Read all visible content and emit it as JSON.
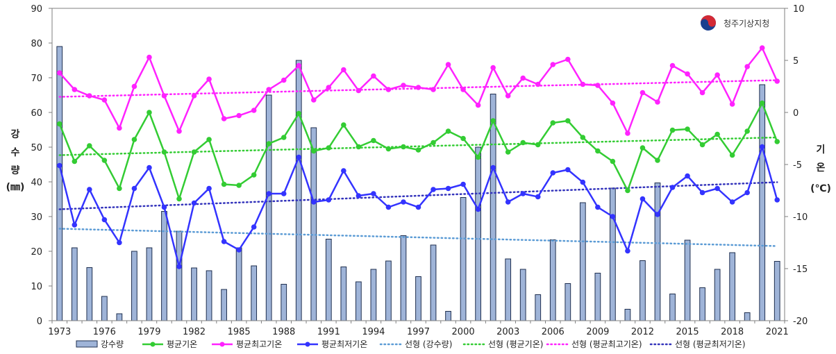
{
  "logo": {
    "text": "청주기상지청"
  },
  "chart_data": {
    "type": "bar+line",
    "years": [
      1973,
      1974,
      1975,
      1976,
      1977,
      1978,
      1979,
      1980,
      1981,
      1982,
      1983,
      1984,
      1985,
      1986,
      1987,
      1988,
      1989,
      1990,
      1991,
      1992,
      1993,
      1994,
      1995,
      1996,
      1997,
      1998,
      1999,
      2000,
      2001,
      2002,
      2003,
      2004,
      2005,
      2006,
      2007,
      2008,
      2009,
      2010,
      2011,
      2012,
      2013,
      2014,
      2015,
      2016,
      2017,
      2018,
      2019,
      2020,
      2021
    ],
    "x_tick_labels": [
      "1973",
      "1976",
      "1979",
      "1982",
      "1985",
      "1988",
      "1991",
      "1994",
      "1997",
      "2000",
      "2003",
      "2006",
      "2009",
      "2012",
      "2015",
      "2018",
      "2021"
    ],
    "left_axis": {
      "label_chars": [
        "강",
        "수",
        "량"
      ],
      "unit": "(㎜)",
      "min": 0,
      "max": 90,
      "ticks": [
        0,
        10,
        20,
        30,
        40,
        50,
        60,
        70,
        80,
        90
      ]
    },
    "right_axis": {
      "label_chars": [
        "기",
        "온"
      ],
      "unit": "(℃)",
      "min": -20,
      "max": 10,
      "ticks": [
        -20,
        -15,
        -10,
        -5,
        0,
        5,
        10
      ]
    },
    "grid": false,
    "series": [
      {
        "name": "강수량",
        "type": "bar",
        "axis": "left",
        "color": "#9fb4d8",
        "values": [
          79,
          21,
          15.3,
          7,
          2,
          20,
          21,
          31.5,
          25.8,
          15.2,
          14.4,
          9,
          21,
          15.8,
          65,
          10.5,
          75,
          55.6,
          23.5,
          15.5,
          11.2,
          14.8,
          17.2,
          24.5,
          12.7,
          21.8,
          2.7,
          35.5,
          50,
          65.3,
          17.8,
          14.8,
          7.5,
          23.3,
          10.7,
          34,
          13.7,
          38.2,
          3.3,
          17.3,
          39.7,
          7.7,
          23.2,
          9.5,
          14.8,
          19.6,
          2.3,
          68,
          17.1
        ]
      },
      {
        "name": "평균기온",
        "type": "line",
        "axis": "right",
        "color": "#33cc33",
        "values": [
          -1.1,
          -4.7,
          -3.2,
          -4.6,
          -7.3,
          -2.6,
          0,
          -3.8,
          -8.3,
          -3.8,
          -2.6,
          -6.9,
          -7,
          -6,
          -3,
          -2.4,
          -0.1,
          -3.7,
          -3.4,
          -1.2,
          -3.3,
          -2.7,
          -3.5,
          -3.3,
          -3.6,
          -2.9,
          -1.8,
          -2.5,
          -4.3,
          -0.8,
          -3.8,
          -2.9,
          -3.1,
          -1,
          -0.8,
          -2.4,
          -3.7,
          -4.7,
          -7.5,
          -3.4,
          -4.6,
          -1.7,
          -1.6,
          -3.1,
          -2.1,
          -4.1,
          -1.8,
          0.9,
          -2.8
        ]
      },
      {
        "name": "평균최고기온",
        "type": "line",
        "axis": "right",
        "color": "#ff22ff",
        "values": [
          3.8,
          2.2,
          1.6,
          1.2,
          -1.5,
          2.5,
          5.3,
          1.6,
          -1.8,
          1.6,
          3.2,
          -0.6,
          -0.3,
          0.2,
          2.2,
          3.1,
          4.5,
          1.2,
          2.4,
          4.1,
          2.1,
          3.5,
          2.2,
          2.6,
          2.4,
          2.2,
          4.6,
          2.2,
          0.7,
          4.3,
          1.6,
          3.3,
          2.7,
          4.6,
          5.1,
          2.7,
          2.6,
          0.9,
          -2,
          1.9,
          1,
          4.5,
          3.7,
          1.9,
          3.6,
          0.8,
          4.4,
          6.2,
          3
        ]
      },
      {
        "name": "평균최저기온",
        "type": "line",
        "axis": "right",
        "color": "#3333ff",
        "values": [
          -5.1,
          -10.8,
          -7.4,
          -10.3,
          -12.5,
          -7.3,
          -5.3,
          -9.1,
          -14.8,
          -8.7,
          -7.3,
          -12.4,
          -13.2,
          -11,
          -7.8,
          -7.8,
          -4.3,
          -8.6,
          -8.4,
          -5.6,
          -8,
          -7.8,
          -9.1,
          -8.6,
          -9.1,
          -7.4,
          -7.3,
          -6.9,
          -9.3,
          -5.3,
          -8.6,
          -7.8,
          -8.1,
          -5.8,
          -5.5,
          -6.7,
          -9.1,
          -10,
          -13.3,
          -8.3,
          -9.8,
          -7.2,
          -6.1,
          -7.7,
          -7.3,
          -8.6,
          -7.7,
          -3.3,
          -8.4
        ]
      },
      {
        "name": "선형 (강수량)",
        "type": "trend",
        "axis": "left",
        "color": "#5b9bd5",
        "dash": "dot",
        "values": [
          26.5,
          21.5
        ]
      },
      {
        "name": "선형 (평균기온)",
        "type": "trend",
        "axis": "right",
        "color": "#33cc33",
        "dash": "dot",
        "values": [
          -4.1,
          -2.4
        ]
      },
      {
        "name": "선형 (평균최고기온)",
        "type": "trend",
        "axis": "right",
        "color": "#ff22ff",
        "dash": "dot",
        "values": [
          1.5,
          3.1
        ]
      },
      {
        "name": "선형 (평균최저기온)",
        "type": "trend",
        "axis": "right",
        "color": "#3333bb",
        "dash": "dot",
        "values": [
          -9.3,
          -6.7
        ]
      }
    ],
    "legend_position": "bottom"
  }
}
